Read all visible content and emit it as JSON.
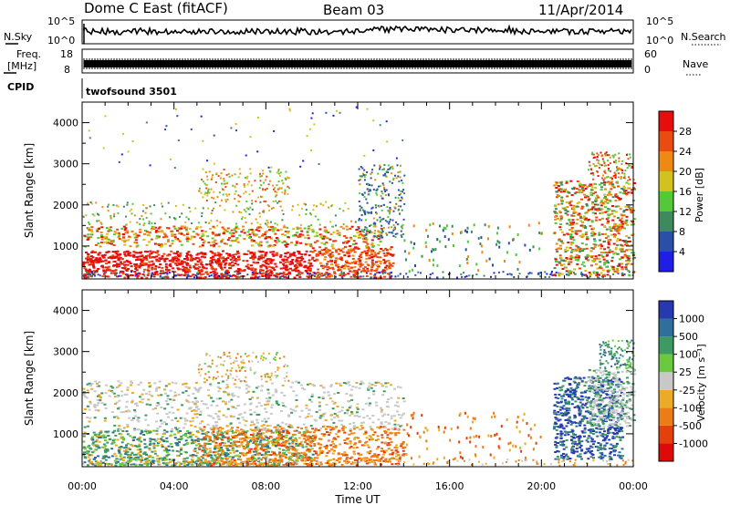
{
  "header": {
    "station": "Dome C East (fitACF)",
    "beam": "Beam 03",
    "date": "11/Apr/2014"
  },
  "top_panels": {
    "nsky": {
      "label": "N.Sky",
      "ticks": [
        "10^5",
        "10^0"
      ]
    },
    "nsearch": {
      "label": "N.Search",
      "ticks": [
        "10^5",
        "10^0"
      ]
    },
    "freq": {
      "label_line1": "Freq.",
      "label_line2": "[MHz]",
      "ticks": [
        "18",
        "8"
      ]
    },
    "nave": {
      "label": "Nave",
      "ticks": [
        "60",
        "0"
      ]
    },
    "cpid": {
      "label": "CPID",
      "value": "twofsound 3501"
    }
  },
  "chart_data": [
    {
      "type": "heatmap",
      "name": "power",
      "ylabel": "Slant Range [km]",
      "xlabel": "Time UT",
      "x_ticks": [
        "00:00",
        "04:00",
        "08:00",
        "12:00",
        "16:00",
        "20:00",
        "00:00"
      ],
      "y_ticks": [
        1000,
        2000,
        3000,
        4000
      ],
      "xlim": [
        0,
        24
      ],
      "ylim": [
        200,
        4500
      ],
      "colorbar": {
        "label": "Power [dB]",
        "ticks": [
          4,
          8,
          12,
          16,
          20,
          24,
          28
        ],
        "range": [
          0,
          32
        ],
        "colors": [
          "#1e1ee6",
          "#2a4fa8",
          "#3f8a5c",
          "#55c83a",
          "#d2c21e",
          "#ee8a14",
          "#ea4b10",
          "#e60d0d"
        ]
      }
    },
    {
      "type": "heatmap",
      "name": "velocity",
      "ylabel": "Slant Range [km]",
      "xlabel": "Time UT",
      "x_ticks": [
        "00:00",
        "04:00",
        "08:00",
        "12:00",
        "16:00",
        "20:00",
        "00:00"
      ],
      "y_ticks": [
        1000,
        2000,
        3000,
        4000
      ],
      "xlim": [
        0,
        24
      ],
      "ylim": [
        200,
        4500
      ],
      "colorbar": {
        "label": "Velocity [m s⁻¹]",
        "ticks": [
          1000,
          500,
          100,
          25,
          -25,
          -100,
          -500,
          -1000
        ],
        "colors": [
          "#2738b0",
          "#2f6f9a",
          "#3c9a62",
          "#6bc940",
          "#c8c8c8",
          "#ecab26",
          "#ec7d16",
          "#e4400c",
          "#de0a0a"
        ]
      }
    }
  ]
}
